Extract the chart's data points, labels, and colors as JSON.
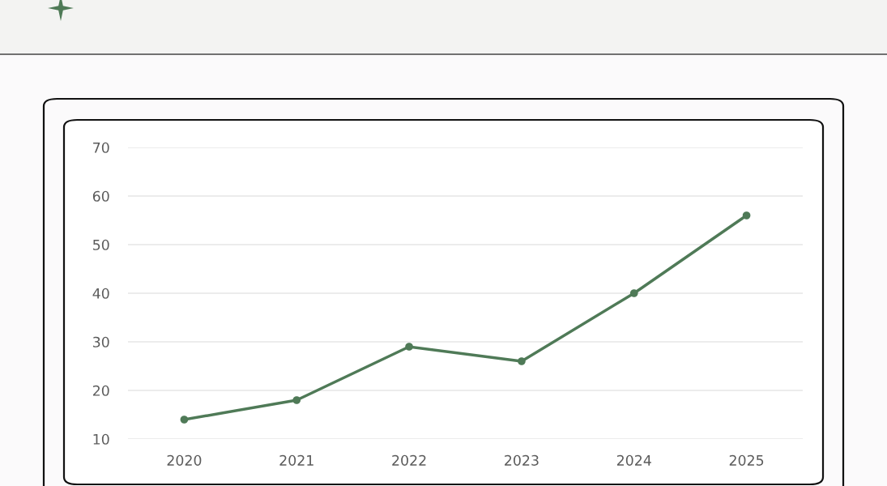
{
  "chart_data": {
    "type": "line",
    "categories": [
      "2020",
      "2021",
      "2022",
      "2023",
      "2024",
      "2025"
    ],
    "series": [
      {
        "color": "#4f7a57",
        "values": [
          14,
          18,
          29,
          26,
          40,
          56
        ]
      }
    ],
    "ylim": [
      10,
      70
    ],
    "yticks": [
      10,
      20,
      30,
      40,
      50,
      60,
      70
    ],
    "grid": "y",
    "marker": "circle",
    "line_style": "solid"
  }
}
